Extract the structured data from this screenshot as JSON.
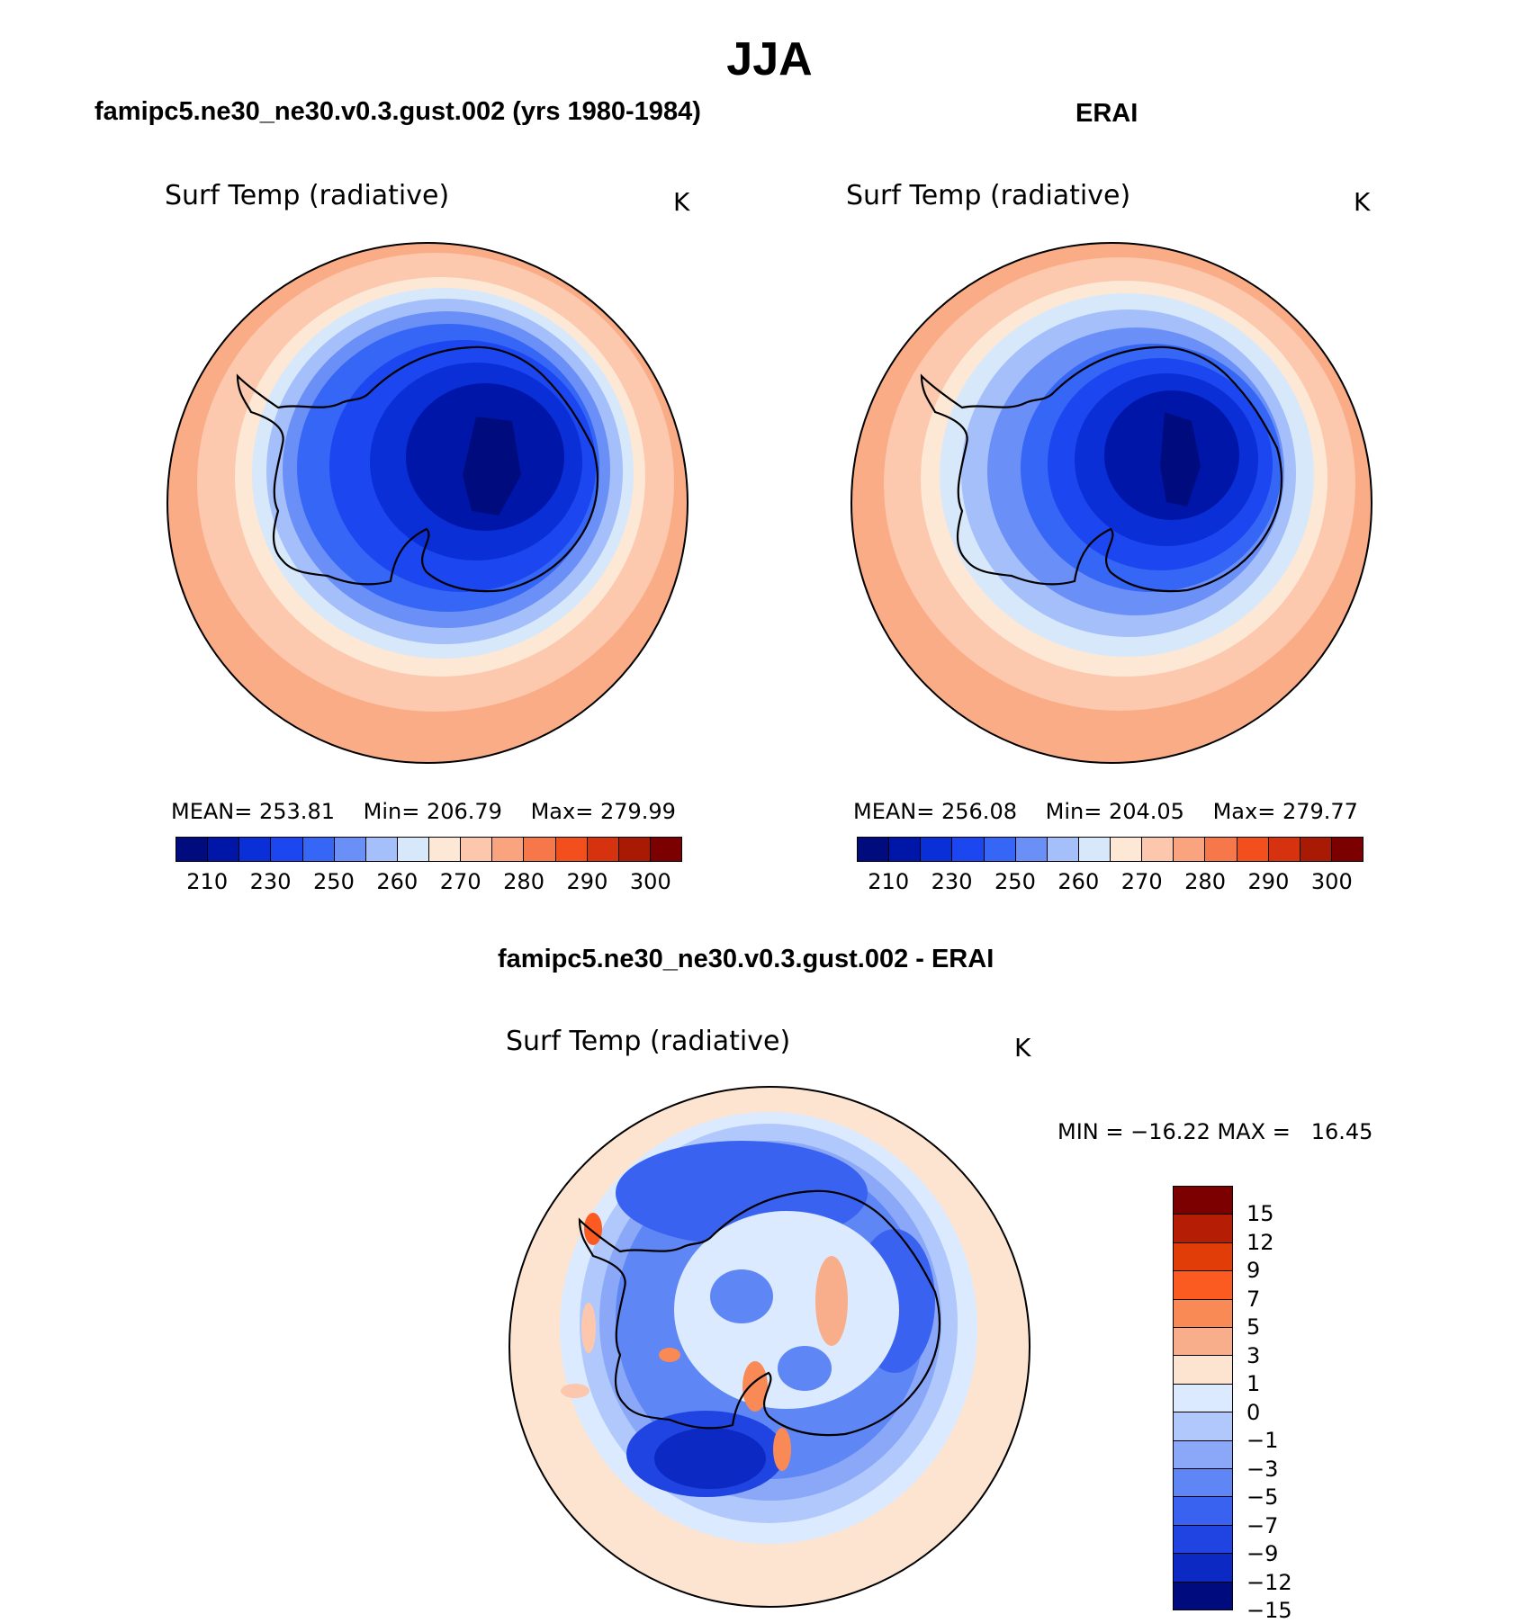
{
  "season_title": "JJA",
  "panels": {
    "model": {
      "header": "famipc5.ne30_ne30.v0.3.gust.002 (yrs 1980-1984)",
      "variable": "Surf Temp (radiative)",
      "units": "K",
      "stats": {
        "mean_label": "MEAN=",
        "mean": "253.81",
        "min_label": "Min=",
        "min": "206.79",
        "max_label": "Max=",
        "max": "279.99"
      }
    },
    "obs": {
      "header": "ERAI",
      "variable": "Surf Temp (radiative)",
      "units": "K",
      "stats": {
        "mean_label": "MEAN=",
        "mean": "256.08",
        "min_label": "Min=",
        "min": "204.05",
        "max_label": "Max=",
        "max": "279.77"
      }
    },
    "diff": {
      "header": "famipc5.ne30_ne30.v0.3.gust.002 - ERAI",
      "variable": "Surf Temp (radiative)",
      "units": "K",
      "minmax": "MIN = −16.22 MAX =   16.45"
    }
  },
  "abs_colorbar": {
    "colors": [
      "#000c7d",
      "#0016a8",
      "#0a2fd6",
      "#1c46f0",
      "#3566f5",
      "#6a8ff7",
      "#a4bff9",
      "#d7e8fb",
      "#fde8d6",
      "#fcc7ad",
      "#f9a47f",
      "#f6774a",
      "#f34f1d",
      "#d63210",
      "#a91a05",
      "#7c0000"
    ],
    "labels": [
      "210",
      "230",
      "250",
      "260",
      "270",
      "280",
      "290",
      "300"
    ]
  },
  "diff_colorbar": {
    "colors": [
      "#7c0000",
      "#b51d05",
      "#e03d08",
      "#fb5a21",
      "#f98a55",
      "#f9ae8b",
      "#fde4d0",
      "#dbeaff",
      "#b0c8fb",
      "#8aa8f7",
      "#5f86f5",
      "#3a62f1",
      "#1f44e2",
      "#0c29c4",
      "#000c7d"
    ],
    "labels": [
      "15",
      "12",
      "9",
      "7",
      "5",
      "3",
      "1",
      "0",
      "−1",
      "−3",
      "−5",
      "−7",
      "−9",
      "−12",
      "−15"
    ]
  }
}
